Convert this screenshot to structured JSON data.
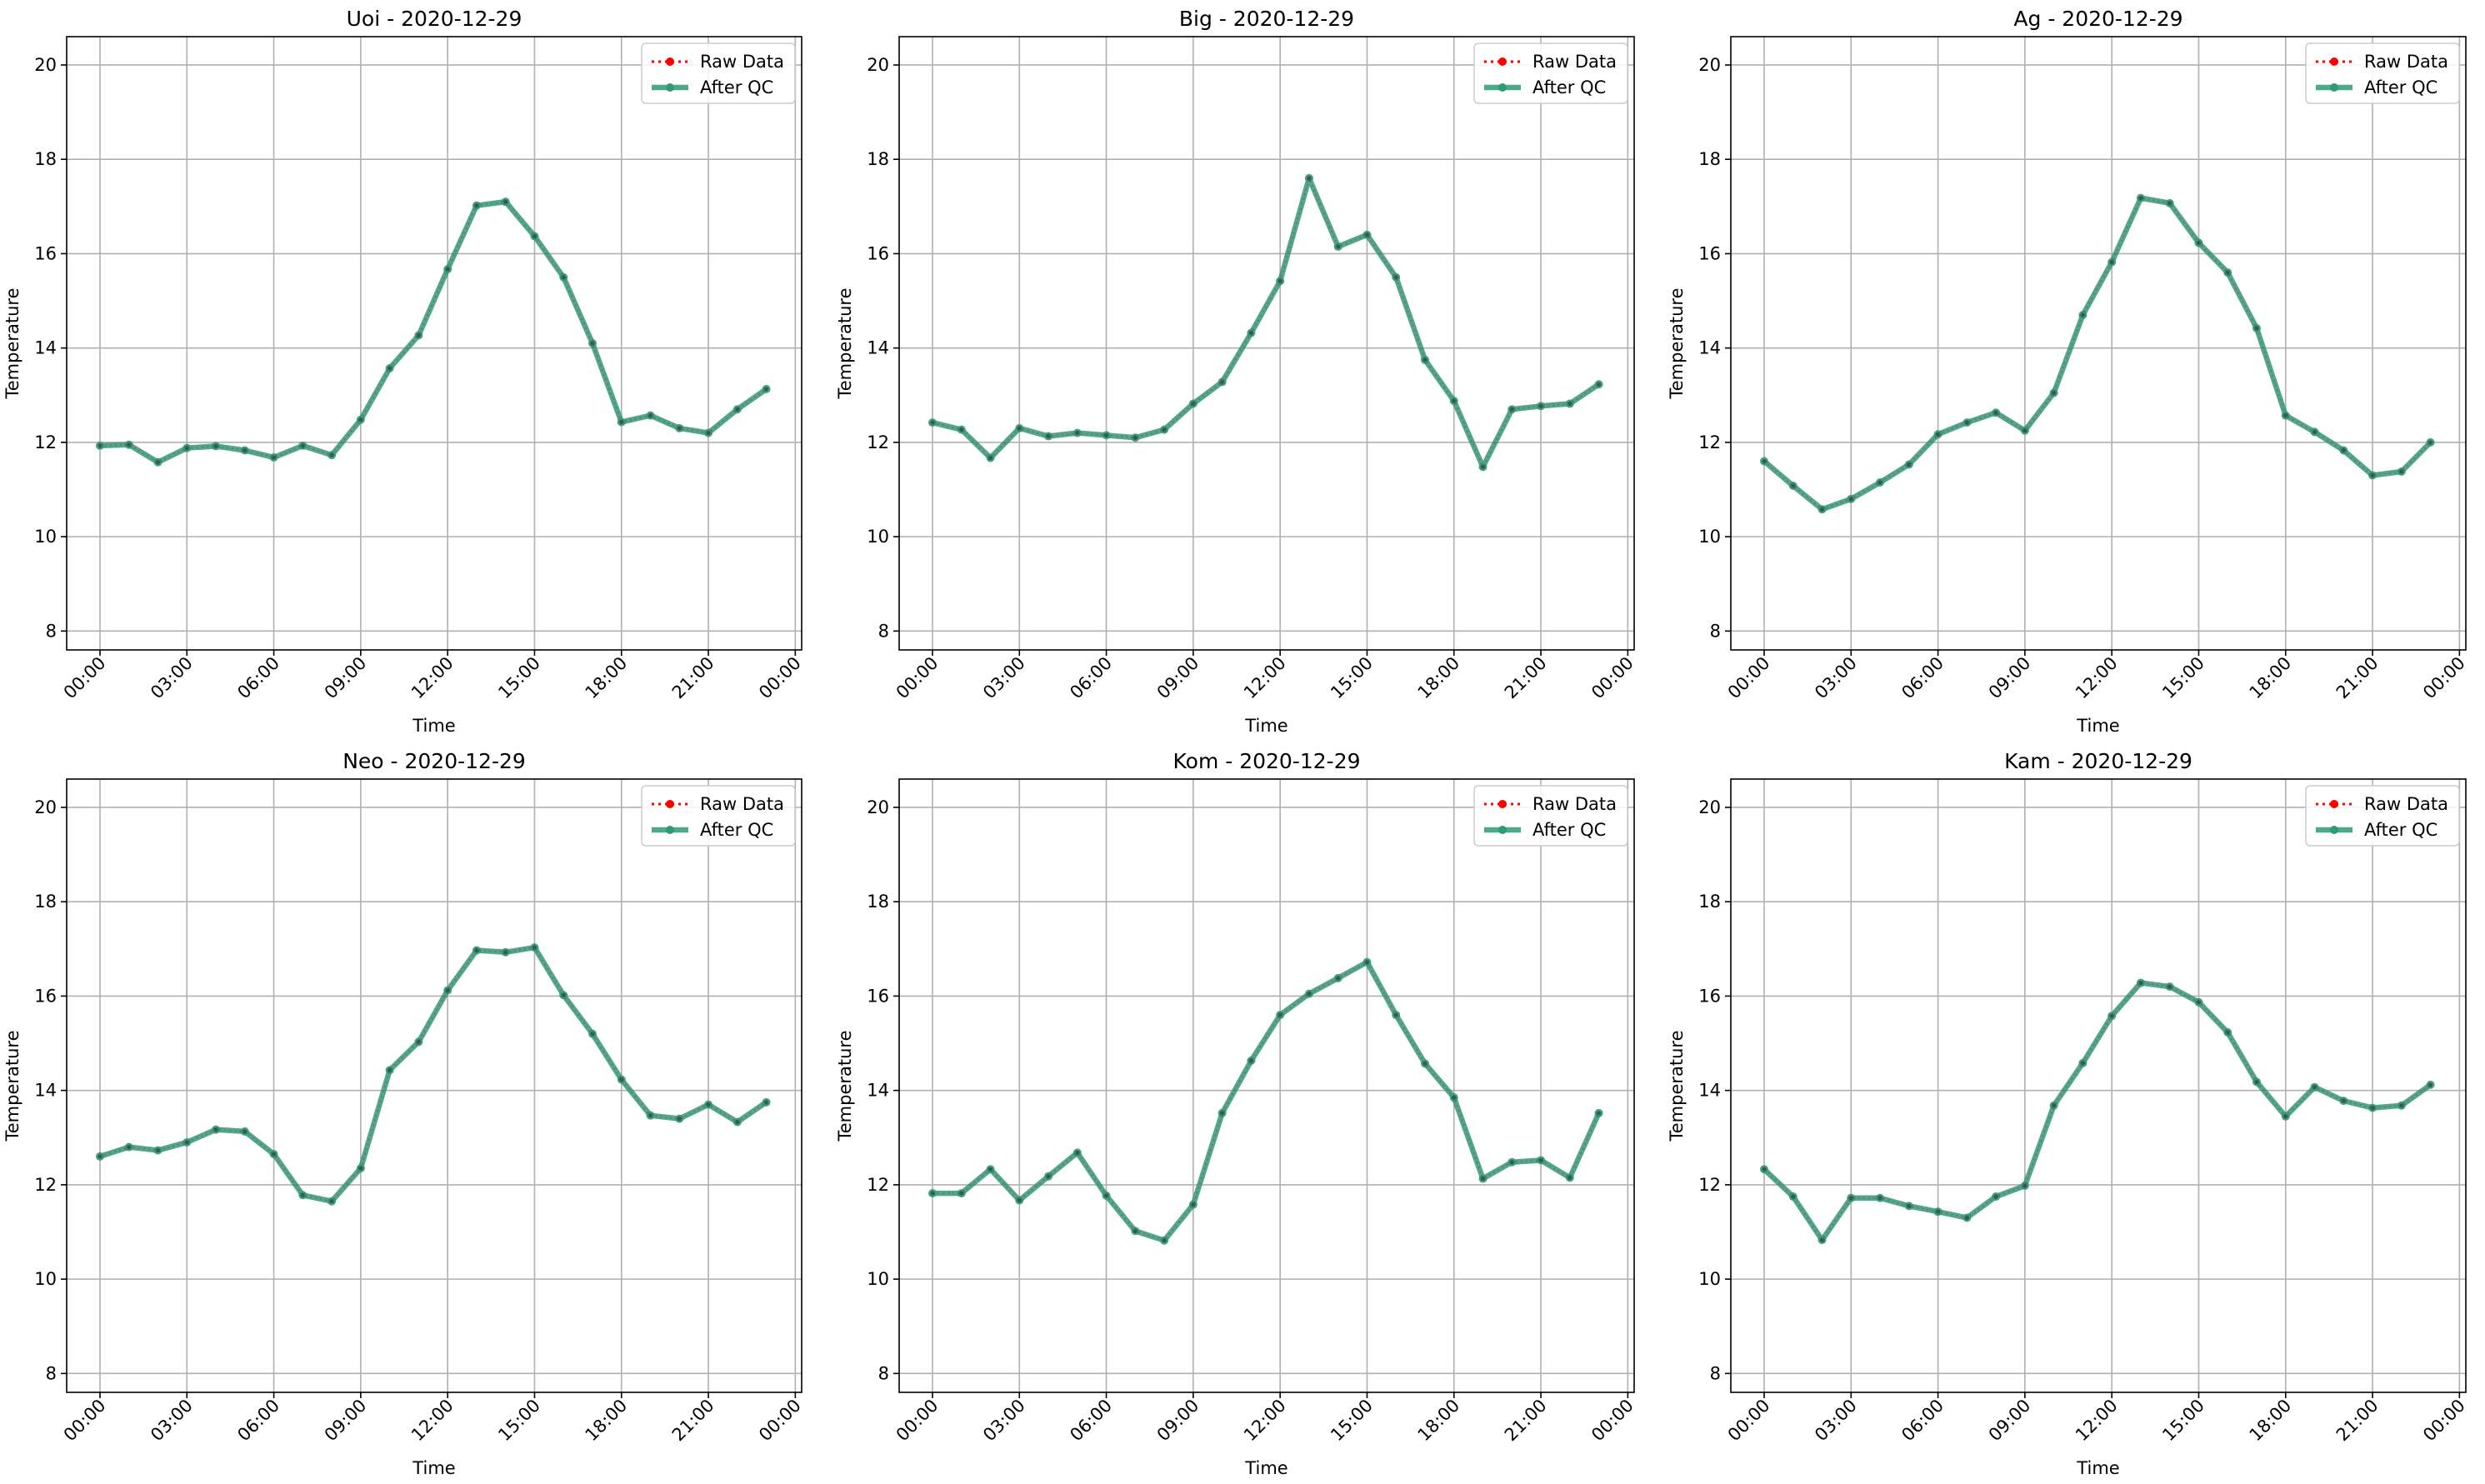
{
  "figure": {
    "legend_raw": "Raw Data",
    "legend_qc": "After QC",
    "xlabel": "Time",
    "ylabel": "Temperature",
    "colors": {
      "raw": "#ff0000",
      "qc": "#2e9a78",
      "grid": "#b0b0b0"
    }
  },
  "chart_data": [
    {
      "type": "line",
      "title": "Uoi - 2020-12-29",
      "xlabel": "Time",
      "ylabel": "Temperature",
      "x_hours": [
        0,
        1,
        2,
        3,
        4,
        5,
        6,
        7,
        8,
        9,
        10,
        11,
        12,
        13,
        14,
        15,
        16,
        17,
        18,
        19,
        20,
        21,
        22,
        23
      ],
      "xticks": [
        "00:00",
        "03:00",
        "06:00",
        "09:00",
        "12:00",
        "15:00",
        "18:00",
        "21:00",
        "00:00"
      ],
      "ylim": [
        7.6,
        20.6
      ],
      "yticks": [
        8,
        10,
        12,
        14,
        16,
        18,
        20
      ],
      "grid": true,
      "legend": "top-right",
      "series": [
        {
          "name": "Raw Data",
          "values": [
            11.93,
            11.95,
            11.58,
            11.88,
            11.92,
            11.83,
            11.68,
            11.93,
            11.73,
            12.48,
            13.57,
            14.27,
            15.67,
            17.02,
            17.1,
            16.37,
            15.5,
            14.1,
            12.43,
            12.57,
            12.3,
            12.2,
            12.7,
            13.13
          ]
        },
        {
          "name": "After QC",
          "values": [
            11.93,
            11.95,
            11.58,
            11.88,
            11.92,
            11.83,
            11.68,
            11.93,
            11.73,
            12.48,
            13.57,
            14.27,
            15.67,
            17.02,
            17.1,
            16.37,
            15.5,
            14.1,
            12.43,
            12.57,
            12.3,
            12.2,
            12.7,
            13.13
          ]
        }
      ]
    },
    {
      "type": "line",
      "title": "Big - 2020-12-29",
      "xlabel": "Time",
      "ylabel": "Temperature",
      "x_hours": [
        0,
        1,
        2,
        3,
        4,
        5,
        6,
        7,
        8,
        9,
        10,
        11,
        12,
        13,
        14,
        15,
        16,
        17,
        18,
        19,
        20,
        21,
        22,
        23
      ],
      "xticks": [
        "00:00",
        "03:00",
        "06:00",
        "09:00",
        "12:00",
        "15:00",
        "18:00",
        "21:00",
        "00:00"
      ],
      "ylim": [
        7.6,
        20.6
      ],
      "yticks": [
        8,
        10,
        12,
        14,
        16,
        18,
        20
      ],
      "grid": true,
      "legend": "top-right",
      "series": [
        {
          "name": "Raw Data",
          "values": [
            12.42,
            12.27,
            11.67,
            12.3,
            12.13,
            12.2,
            12.15,
            12.1,
            12.27,
            12.82,
            13.28,
            14.32,
            15.42,
            17.6,
            16.15,
            16.4,
            15.5,
            13.75,
            12.88,
            11.48,
            12.7,
            12.77,
            12.82,
            13.23
          ]
        },
        {
          "name": "After QC",
          "values": [
            12.42,
            12.27,
            11.67,
            12.3,
            12.13,
            12.2,
            12.15,
            12.1,
            12.27,
            12.82,
            13.28,
            14.32,
            15.42,
            17.6,
            16.15,
            16.4,
            15.5,
            13.75,
            12.88,
            11.48,
            12.7,
            12.77,
            12.82,
            13.23
          ]
        }
      ]
    },
    {
      "type": "line",
      "title": "Ag - 2020-12-29",
      "xlabel": "Time",
      "ylabel": "Temperature",
      "x_hours": [
        0,
        1,
        2,
        3,
        4,
        5,
        6,
        7,
        8,
        9,
        10,
        11,
        12,
        13,
        14,
        15,
        16,
        17,
        18,
        19,
        20,
        21,
        22,
        23
      ],
      "xticks": [
        "00:00",
        "03:00",
        "06:00",
        "09:00",
        "12:00",
        "15:00",
        "18:00",
        "21:00",
        "00:00"
      ],
      "ylim": [
        7.6,
        20.6
      ],
      "yticks": [
        8,
        10,
        12,
        14,
        16,
        18,
        20
      ],
      "grid": true,
      "legend": "top-right",
      "series": [
        {
          "name": "Raw Data",
          "values": [
            11.6,
            11.08,
            10.58,
            10.8,
            11.15,
            11.53,
            12.17,
            12.42,
            12.63,
            12.25,
            13.05,
            14.7,
            15.82,
            17.18,
            17.07,
            16.23,
            15.6,
            14.42,
            12.57,
            12.22,
            11.83,
            11.3,
            11.38,
            12.0
          ]
        },
        {
          "name": "After QC",
          "values": [
            11.6,
            11.08,
            10.58,
            10.8,
            11.15,
            11.53,
            12.17,
            12.42,
            12.63,
            12.25,
            13.05,
            14.7,
            15.82,
            17.18,
            17.07,
            16.23,
            15.6,
            14.42,
            12.57,
            12.22,
            11.83,
            11.3,
            11.38,
            12.0
          ]
        }
      ]
    },
    {
      "type": "line",
      "title": "Neo - 2020-12-29",
      "xlabel": "Time",
      "ylabel": "Temperature",
      "x_hours": [
        0,
        1,
        2,
        3,
        4,
        5,
        6,
        7,
        8,
        9,
        10,
        11,
        12,
        13,
        14,
        15,
        16,
        17,
        18,
        19,
        20,
        21,
        22,
        23
      ],
      "xticks": [
        "00:00",
        "03:00",
        "06:00",
        "09:00",
        "12:00",
        "15:00",
        "18:00",
        "21:00",
        "00:00"
      ],
      "ylim": [
        7.6,
        20.6
      ],
      "yticks": [
        8,
        10,
        12,
        14,
        16,
        18,
        20
      ],
      "grid": true,
      "legend": "top-right",
      "series": [
        {
          "name": "Raw Data",
          "values": [
            12.6,
            12.8,
            12.73,
            12.9,
            13.17,
            13.13,
            12.65,
            11.78,
            11.65,
            12.35,
            14.43,
            15.03,
            16.12,
            16.97,
            16.93,
            17.03,
            16.02,
            15.2,
            14.23,
            13.47,
            13.4,
            13.7,
            13.33,
            13.75
          ]
        },
        {
          "name": "After QC",
          "values": [
            12.6,
            12.8,
            12.73,
            12.9,
            13.17,
            13.13,
            12.65,
            11.78,
            11.65,
            12.35,
            14.43,
            15.03,
            16.12,
            16.97,
            16.93,
            17.03,
            16.02,
            15.2,
            14.23,
            13.47,
            13.4,
            13.7,
            13.33,
            13.75
          ]
        }
      ]
    },
    {
      "type": "line",
      "title": "Kom - 2020-12-29",
      "xlabel": "Time",
      "ylabel": "Temperature",
      "x_hours": [
        0,
        1,
        2,
        3,
        4,
        5,
        6,
        7,
        8,
        9,
        10,
        11,
        12,
        13,
        14,
        15,
        16,
        17,
        18,
        19,
        20,
        21,
        22,
        23
      ],
      "xticks": [
        "00:00",
        "03:00",
        "06:00",
        "09:00",
        "12:00",
        "15:00",
        "18:00",
        "21:00",
        "00:00"
      ],
      "ylim": [
        7.6,
        20.6
      ],
      "yticks": [
        8,
        10,
        12,
        14,
        16,
        18,
        20
      ],
      "grid": true,
      "legend": "top-right",
      "series": [
        {
          "name": "Raw Data",
          "values": [
            11.82,
            11.82,
            12.33,
            11.67,
            12.18,
            12.68,
            11.77,
            11.02,
            10.82,
            11.58,
            13.52,
            14.63,
            15.6,
            16.05,
            16.38,
            16.72,
            15.6,
            14.57,
            13.85,
            12.13,
            12.48,
            12.52,
            12.15,
            13.52
          ]
        },
        {
          "name": "After QC",
          "values": [
            11.82,
            11.82,
            12.33,
            11.67,
            12.18,
            12.68,
            11.77,
            11.02,
            10.82,
            11.58,
            13.52,
            14.63,
            15.6,
            16.05,
            16.38,
            16.72,
            15.6,
            14.57,
            13.85,
            12.13,
            12.48,
            12.52,
            12.15,
            13.52
          ]
        }
      ]
    },
    {
      "type": "line",
      "title": "Kam - 2020-12-29",
      "xlabel": "Time",
      "ylabel": "Temperature",
      "x_hours": [
        0,
        1,
        2,
        3,
        4,
        5,
        6,
        7,
        8,
        9,
        10,
        11,
        12,
        13,
        14,
        15,
        16,
        17,
        18,
        19,
        20,
        21,
        22,
        23
      ],
      "xticks": [
        "00:00",
        "03:00",
        "06:00",
        "09:00",
        "12:00",
        "15:00",
        "18:00",
        "21:00",
        "00:00"
      ],
      "ylim": [
        7.6,
        20.6
      ],
      "yticks": [
        8,
        10,
        12,
        14,
        16,
        18,
        20
      ],
      "grid": true,
      "legend": "top-right",
      "series": [
        {
          "name": "Raw Data",
          "values": [
            12.33,
            11.75,
            10.83,
            11.72,
            11.72,
            11.55,
            11.43,
            11.3,
            11.75,
            11.98,
            13.68,
            14.58,
            15.58,
            16.28,
            16.2,
            15.87,
            15.23,
            14.18,
            13.45,
            14.07,
            13.78,
            13.63,
            13.68,
            14.12
          ]
        },
        {
          "name": "After QC",
          "values": [
            12.33,
            11.75,
            10.83,
            11.72,
            11.72,
            11.55,
            11.43,
            11.3,
            11.75,
            11.98,
            13.68,
            14.58,
            15.58,
            16.28,
            16.2,
            15.87,
            15.23,
            14.18,
            13.45,
            14.07,
            13.78,
            13.63,
            13.68,
            14.12
          ]
        }
      ]
    }
  ]
}
